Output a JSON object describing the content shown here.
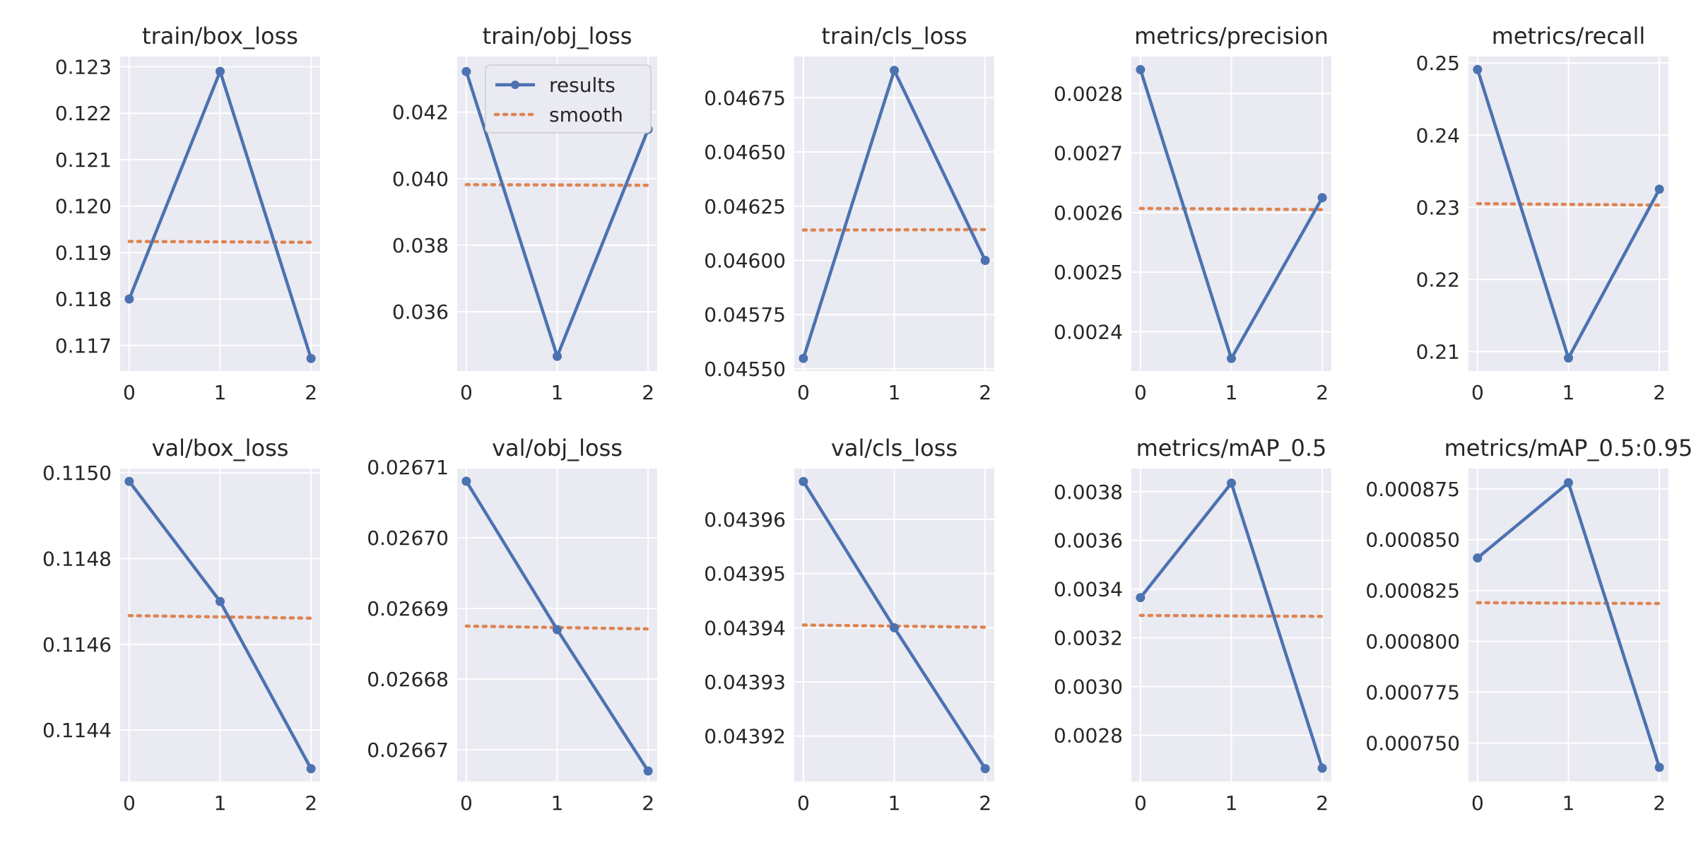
{
  "legend": {
    "results_label": "results",
    "smooth_label": "smooth"
  },
  "colors": {
    "results": "#4c72b0",
    "smooth": "#dd8452",
    "panel_background": "#eaeaf2",
    "grid": "#ffffff"
  },
  "chart_data": [
    {
      "type": "line",
      "title": "train/box_loss",
      "x": [
        0,
        1,
        2
      ],
      "series": [
        {
          "name": "results",
          "values": [
            0.118,
            0.1229,
            0.11672
          ]
        },
        {
          "name": "smooth",
          "values": [
            0.11924,
            0.11923,
            0.11922
          ]
        }
      ],
      "xlim": [
        -0.1,
        2.1
      ],
      "ylim": [
        0.11645,
        0.12322
      ],
      "xticks": [
        0,
        1,
        2
      ],
      "xtick_labels": [
        "0",
        "1",
        "2"
      ],
      "yticks": [
        0.117,
        0.118,
        0.119,
        0.12,
        0.121,
        0.122,
        0.123
      ],
      "ytick_labels": [
        "0.117",
        "0.118",
        "0.119",
        "0.120",
        "0.121",
        "0.122",
        "0.123"
      ],
      "grid": true,
      "legend": false
    },
    {
      "type": "line",
      "title": "train/obj_loss",
      "x": [
        0,
        1,
        2
      ],
      "series": [
        {
          "name": "results",
          "values": [
            0.04322,
            0.03466,
            0.04148
          ]
        },
        {
          "name": "smooth",
          "values": [
            0.03982,
            0.03981,
            0.0398
          ]
        }
      ],
      "xlim": [
        -0.1,
        2.1
      ],
      "ylim": [
        0.03422,
        0.04367
      ],
      "xticks": [
        0,
        1,
        2
      ],
      "xtick_labels": [
        "0",
        "1",
        "2"
      ],
      "yticks": [
        0.036,
        0.038,
        0.04,
        0.042
      ],
      "ytick_labels": [
        "0.036",
        "0.038",
        "0.040",
        "0.042"
      ],
      "grid": true,
      "legend": true,
      "legend_position": "top-right"
    },
    {
      "type": "line",
      "title": "train/cls_loss",
      "x": [
        0,
        1,
        2
      ],
      "series": [
        {
          "name": "results",
          "values": [
            0.045548,
            0.046876,
            0.046
          ]
        },
        {
          "name": "smooth",
          "values": [
            0.04614,
            0.046141,
            0.046142
          ]
        }
      ],
      "xlim": [
        -0.1,
        2.1
      ],
      "ylim": [
        0.04549,
        0.04694
      ],
      "xticks": [
        0,
        1,
        2
      ],
      "xtick_labels": [
        "0",
        "1",
        "2"
      ],
      "yticks": [
        0.0455,
        0.04575,
        0.046,
        0.04625,
        0.0465,
        0.04675
      ],
      "ytick_labels": [
        "0.04550",
        "0.04575",
        "0.04600",
        "0.04625",
        "0.04650",
        "0.04675"
      ],
      "grid": true,
      "legend": false
    },
    {
      "type": "line",
      "title": "metrics/precision",
      "x": [
        0,
        1,
        2
      ],
      "series": [
        {
          "name": "results",
          "values": [
            0.00284,
            0.002355,
            0.002625
          ]
        },
        {
          "name": "smooth",
          "values": [
            0.002607,
            0.002606,
            0.002605
          ]
        }
      ],
      "xlim": [
        -0.1,
        2.1
      ],
      "ylim": [
        0.002334,
        0.002862
      ],
      "xticks": [
        0,
        1,
        2
      ],
      "xtick_labels": [
        "0",
        "1",
        "2"
      ],
      "yticks": [
        0.0024,
        0.0025,
        0.0026,
        0.0027,
        0.0028
      ],
      "ytick_labels": [
        "0.0024",
        "0.0025",
        "0.0026",
        "0.0027",
        "0.0028"
      ],
      "grid": true,
      "legend": false
    },
    {
      "type": "line",
      "title": "metrics/recall",
      "x": [
        0,
        1,
        2
      ],
      "series": [
        {
          "name": "results",
          "values": [
            0.2491,
            0.2091,
            0.2325
          ]
        },
        {
          "name": "smooth",
          "values": [
            0.2305,
            0.2304,
            0.2303
          ]
        }
      ],
      "xlim": [
        -0.1,
        2.1
      ],
      "ylim": [
        0.2073,
        0.2509
      ],
      "xticks": [
        0,
        1,
        2
      ],
      "xtick_labels": [
        "0",
        "1",
        "2"
      ],
      "yticks": [
        0.21,
        0.22,
        0.23,
        0.24,
        0.25
      ],
      "ytick_labels": [
        "0.21",
        "0.22",
        "0.23",
        "0.24",
        "0.25"
      ],
      "grid": true,
      "legend": false
    },
    {
      "type": "line",
      "title": "val/box_loss",
      "x": [
        0,
        1,
        2
      ],
      "series": [
        {
          "name": "results",
          "values": [
            0.11498,
            0.1147,
            0.11431
          ]
        },
        {
          "name": "smooth",
          "values": [
            0.114667,
            0.114664,
            0.114661
          ]
        }
      ],
      "xlim": [
        -0.1,
        2.1
      ],
      "ylim": [
        0.11428,
        0.11501
      ],
      "xticks": [
        0,
        1,
        2
      ],
      "xtick_labels": [
        "0",
        "1",
        "2"
      ],
      "yticks": [
        0.1144,
        0.1146,
        0.1148,
        0.115
      ],
      "ytick_labels": [
        "0.1144",
        "0.1146",
        "0.1148",
        "0.1150"
      ],
      "grid": true,
      "legend": false
    },
    {
      "type": "line",
      "title": "val/obj_loss",
      "x": [
        0,
        1,
        2
      ],
      "series": [
        {
          "name": "results",
          "values": [
            0.026708,
            0.026687,
            0.026667
          ]
        },
        {
          "name": "smooth",
          "values": [
            0.0266875,
            0.0266873,
            0.0266871
          ]
        }
      ],
      "xlim": [
        -0.1,
        2.1
      ],
      "ylim": [
        0.0266655,
        0.0267098
      ],
      "xticks": [
        0,
        1,
        2
      ],
      "xtick_labels": [
        "0",
        "1",
        "2"
      ],
      "yticks": [
        0.02667,
        0.02668,
        0.02669,
        0.0267,
        0.02671
      ],
      "ytick_labels": [
        "0.02667",
        "0.02668",
        "0.02669",
        "0.02670",
        "0.02671"
      ],
      "grid": true,
      "legend": false
    },
    {
      "type": "line",
      "title": "val/cls_loss",
      "x": [
        0,
        1,
        2
      ],
      "series": [
        {
          "name": "results",
          "values": [
            0.043967,
            0.04394,
            0.043914
          ]
        },
        {
          "name": "smooth",
          "values": [
            0.0439405,
            0.0439403,
            0.0439401
          ]
        }
      ],
      "xlim": [
        -0.1,
        2.1
      ],
      "ylim": [
        0.0439116,
        0.0439694
      ],
      "xticks": [
        0,
        1,
        2
      ],
      "xtick_labels": [
        "0",
        "1",
        "2"
      ],
      "yticks": [
        0.04392,
        0.04393,
        0.04394,
        0.04395,
        0.04396
      ],
      "ytick_labels": [
        "0.04392",
        "0.04393",
        "0.04394",
        "0.04395",
        "0.04396"
      ],
      "grid": true,
      "legend": false
    },
    {
      "type": "line",
      "title": "metrics/mAP_0.5",
      "x": [
        0,
        1,
        2
      ],
      "series": [
        {
          "name": "results",
          "values": [
            0.003365,
            0.003835,
            0.002665
          ]
        },
        {
          "name": "smooth",
          "values": [
            0.003292,
            0.00329,
            0.003288
          ]
        }
      ],
      "xlim": [
        -0.1,
        2.1
      ],
      "ylim": [
        0.00261,
        0.003895
      ],
      "xticks": [
        0,
        1,
        2
      ],
      "xtick_labels": [
        "0",
        "1",
        "2"
      ],
      "yticks": [
        0.0028,
        0.003,
        0.0032,
        0.0034,
        0.0036,
        0.0038
      ],
      "ytick_labels": [
        "0.0028",
        "0.0030",
        "0.0032",
        "0.0034",
        "0.0036",
        "0.0038"
      ],
      "grid": true,
      "legend": false
    },
    {
      "type": "line",
      "title": "metrics/mAP_0.5:0.95",
      "x": [
        0,
        1,
        2
      ],
      "series": [
        {
          "name": "results",
          "values": [
            0.000841,
            0.000878,
            0.000738
          ]
        },
        {
          "name": "smooth",
          "values": [
            0.000819,
            0.0008188,
            0.0008186
          ]
        }
      ],
      "xlim": [
        -0.1,
        2.1
      ],
      "ylim": [
        0.000731,
        0.000885
      ],
      "xticks": [
        0,
        1,
        2
      ],
      "xtick_labels": [
        "0",
        "1",
        "2"
      ],
      "yticks": [
        0.00075,
        0.000775,
        0.0008,
        0.000825,
        0.00085,
        0.000875
      ],
      "ytick_labels": [
        "0.000750",
        "0.000775",
        "0.000800",
        "0.000825",
        "0.000850",
        "0.000875"
      ],
      "grid": true,
      "legend": false
    }
  ]
}
